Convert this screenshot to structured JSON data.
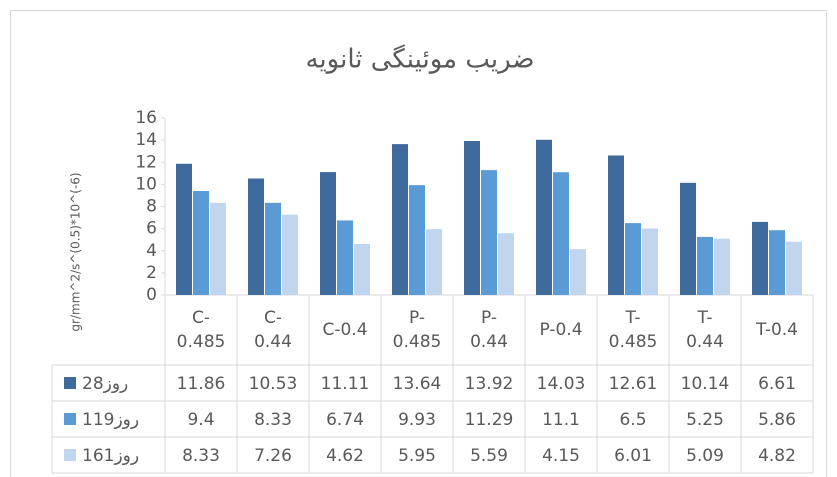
{
  "chart_data": {
    "type": "bar",
    "title": "ضریب موئینگی ثانویه",
    "y_label": "gr/mm^2/s^(0.5)*10^(-6)",
    "categories": [
      "C-0.485",
      "C-0.44",
      "C-0.4",
      "P-0.485",
      "P-0.44",
      "P-0.4",
      "T-0.485",
      "T-0.44",
      "T-0.4"
    ],
    "series": [
      {
        "name": "روز28",
        "color": "#3e6a9c",
        "values": [
          11.86,
          10.53,
          11.11,
          13.64,
          13.92,
          14.03,
          12.61,
          10.14,
          6.61
        ]
      },
      {
        "name": "روز119",
        "color": "#5b9bd5",
        "values": [
          9.4,
          8.33,
          6.74,
          9.93,
          11.29,
          11.1,
          6.5,
          5.25,
          5.86
        ]
      },
      {
        "name": "روز161",
        "color": "#c0d6ee",
        "values": [
          8.33,
          7.26,
          4.62,
          5.95,
          5.59,
          4.15,
          6.01,
          5.09,
          4.82
        ]
      }
    ],
    "ylim": [
      0,
      16
    ],
    "yticks": [
      0,
      2,
      4,
      6,
      8,
      10,
      12,
      14,
      16
    ],
    "data_table": true
  }
}
